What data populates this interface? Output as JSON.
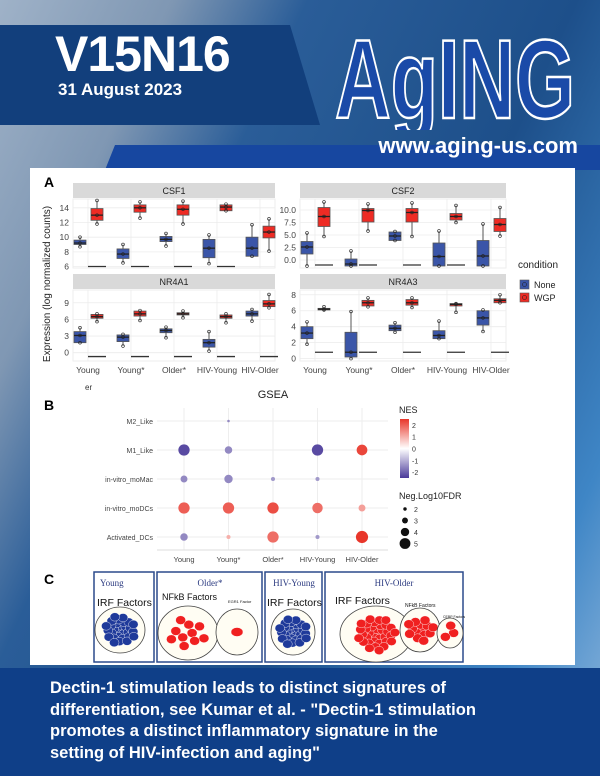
{
  "cover": {
    "volume_issue": "V15N16",
    "date": "31 August 2023",
    "journal_logo": "AGING",
    "url": "www.aging-us.com",
    "colors": {
      "band": "#123f7c",
      "logo_blue": "#1a4aa8",
      "banner": "#0f3f88"
    },
    "caption_lines": [
      "Dectin-1 stimulation leads to distinct signatures of",
      "differentiation, see Kumar et al. - \"Dectin-1 stimulation",
      "promotes a distinct inflammatory signature in the",
      "setting of HIV-infection and aging\""
    ]
  },
  "figure": {
    "panel_labels": [
      "A",
      "B",
      "C"
    ],
    "panel_c": {
      "panels": [
        {
          "title": "Young",
          "clusters": [
            {
              "label": "IRF Factors",
              "color": "#1f3a9a",
              "count": 30
            }
          ]
        },
        {
          "title": "Older*",
          "clusters": [
            {
              "label": "NFkB Factors",
              "color": "#f02020",
              "count": 10
            },
            {
              "label": "EGR1 Factor",
              "color": "#f02020",
              "count": 1
            }
          ]
        },
        {
          "title": "HIV-Young",
          "clusters": [
            {
              "label": "IRF Factors",
              "color": "#1f3a9a",
              "count": 30
            }
          ]
        },
        {
          "title": "HIV-Older",
          "clusters": [
            {
              "label": "IRF Factors",
              "color": "#f02020",
              "count": 35
            },
            {
              "label": "NFkB Factors",
              "color": "#f02020",
              "count": 14
            },
            {
              "label": "CEBP Factors",
              "color": "#f02020",
              "count": 3
            }
          ]
        }
      ]
    }
  },
  "chart_data": [
    {
      "type": "boxplot",
      "panel": "A",
      "ylabel": "Expression (log normalized counts)",
      "categories": [
        "Young",
        "Young*",
        "Older*",
        "HIV-Young",
        "HIV-Older"
      ],
      "legend": {
        "title": "condition",
        "placement": "right",
        "entries": [
          {
            "name": "None",
            "color": "#3a55a8"
          },
          {
            "name": "WGP",
            "color": "#ee2b24"
          }
        ]
      },
      "grid": true,
      "facets": [
        {
          "title": "CSF1",
          "ylim": [
            5.8,
            15.2
          ],
          "ticks": [
            6,
            8,
            10,
            12,
            14
          ],
          "None": [
            [
              8.7,
              9.0,
              9.2,
              9.6,
              10.0
            ],
            [
              6.5,
              7.1,
              7.7,
              8.4,
              9.0
            ],
            [
              8.8,
              9.4,
              9.7,
              10.1,
              10.5
            ],
            [
              6.4,
              7.2,
              8.5,
              9.7,
              10.3
            ],
            [
              7.4,
              7.4,
              8.5,
              10.0,
              11.7
            ]
          ],
          "WGP": [
            [
              11.8,
              12.3,
              13.0,
              13.9,
              15.0
            ],
            [
              12.6,
              13.4,
              14.0,
              14.4,
              14.8
            ],
            [
              11.8,
              13.0,
              13.8,
              14.4,
              14.9
            ],
            [
              13.6,
              13.6,
              14.1,
              14.4,
              14.5
            ],
            [
              8.1,
              9.9,
              10.7,
              11.5,
              12.5
            ]
          ],
          "baseline": [
            6,
            6,
            6,
            6,
            null
          ]
        },
        {
          "title": "CSF2",
          "ylim": [
            -1.6,
            12.2
          ],
          "ticks": [
            0.0,
            2.5,
            5.0,
            7.5,
            10.0
          ],
          "tick_labels": [
            "0.0",
            "2.5",
            "5.0",
            "7.5",
            "10.0"
          ],
          "None": [
            [
              -1.2,
              1.2,
              2.6,
              3.7,
              5.4
            ],
            [
              -1.2,
              -1.2,
              -0.8,
              0.2,
              1.8
            ],
            [
              3.9,
              3.9,
              4.8,
              5.6,
              5.7
            ],
            [
              -1.2,
              -1.2,
              0.7,
              3.4,
              5.8
            ],
            [
              -1.2,
              -1.2,
              0.8,
              3.9,
              7.2
            ]
          ],
          "WGP": [
            [
              4.7,
              6.7,
              8.7,
              10.5,
              11.6
            ],
            [
              5.8,
              7.6,
              9.9,
              10.3,
              11.2
            ],
            [
              4.7,
              7.6,
              9.5,
              10.3,
              11.4
            ],
            [
              7.5,
              8.0,
              8.7,
              9.3,
              10.9
            ],
            [
              4.8,
              5.7,
              7.1,
              8.3,
              10.5
            ]
          ],
          "baseline": [
            -1,
            -1,
            -1,
            -1,
            null
          ]
        },
        {
          "title": "NR4A1",
          "ylim": [
            -1.5,
            11.3
          ],
          "ticks": [
            0,
            3,
            6,
            9
          ],
          "None": [
            [
              1.8,
              1.8,
              3.1,
              3.8,
              4.5
            ],
            [
              1.2,
              2.0,
              2.8,
              3.2,
              3.3
            ],
            [
              2.7,
              3.6,
              4.0,
              4.3,
              4.6
            ],
            [
              0.3,
              1.0,
              1.8,
              2.4,
              3.8
            ],
            [
              5.7,
              6.6,
              7.0,
              7.5,
              7.8
            ]
          ],
          "WGP": [
            [
              5.6,
              6.2,
              6.5,
              6.9,
              7.0
            ],
            [
              5.8,
              6.6,
              7.0,
              7.5,
              7.6
            ],
            [
              6.3,
              6.8,
              7.0,
              7.2,
              7.5
            ],
            [
              5.4,
              6.2,
              6.5,
              6.8,
              7.0
            ],
            [
              8.1,
              8.3,
              8.8,
              9.4,
              10.5
            ]
          ],
          "baseline": [
            -0.7,
            -0.7,
            -0.7,
            -0.7,
            -0.7
          ]
        },
        {
          "title": "NR4A3",
          "ylim": [
            -0.3,
            8.6
          ],
          "ticks": [
            0,
            2,
            4,
            6,
            8
          ],
          "None": [
            [
              1.8,
              2.5,
              3.2,
              4.0,
              4.6
            ],
            [
              0.0,
              0.2,
              0.8,
              3.3,
              5.9
            ],
            [
              3.3,
              3.5,
              3.8,
              4.2,
              4.5
            ],
            [
              2.5,
              2.5,
              2.9,
              3.5,
              4.7
            ],
            [
              3.4,
              4.2,
              5.1,
              6.0,
              6.1
            ]
          ],
          "WGP": [
            [
              6.1,
              6.1,
              6.2,
              6.3,
              6.5
            ],
            [
              6.5,
              6.6,
              7.0,
              7.3,
              7.6
            ],
            [
              6.4,
              6.7,
              7.0,
              7.4,
              7.6
            ],
            [
              5.8,
              6.6,
              6.8,
              6.9,
              6.9
            ],
            [
              7.0,
              7.0,
              7.3,
              7.5,
              8.0
            ]
          ],
          "baseline": [
            0.8,
            0.8,
            0.8,
            0.8,
            0.8
          ]
        }
      ]
    },
    {
      "type": "scatter",
      "panel": "B",
      "title": "GSEA",
      "corner_text": "er",
      "x_categories": [
        "Young",
        "Young*",
        "Older*",
        "HIV-Young",
        "HIV-Older"
      ],
      "y_categories": [
        "M2_Like",
        "M1_Like",
        "in-vitro_moMac",
        "in-vitro_moDCs",
        "Activated_DCs"
      ],
      "color_legend": {
        "title": "NES",
        "range": [
          -2.5,
          2.5
        ],
        "ticks": [
          2,
          1,
          0,
          -1,
          -2
        ],
        "low": "#4b3a9a",
        "mid": "#ffffff",
        "high": "#e8362a"
      },
      "size_legend": {
        "title": "Neg.Log10FDR",
        "values": [
          2,
          3,
          4,
          5
        ]
      },
      "grid": true,
      "points": [
        {
          "x": "Young*",
          "y": "M2_Like",
          "NES": -1.5,
          "FDR": 1.5
        },
        {
          "x": "Young",
          "y": "M1_Like",
          "NES": -2.3,
          "FDR": 4.5
        },
        {
          "x": "Young*",
          "y": "M1_Like",
          "NES": -1.5,
          "FDR": 3.2
        },
        {
          "x": "HIV-Young",
          "y": "M1_Like",
          "NES": -2.3,
          "FDR": 4.5
        },
        {
          "x": "HIV-Older",
          "y": "M1_Like",
          "NES": 2.3,
          "FDR": 4.3
        },
        {
          "x": "Young",
          "y": "in-vitro_moMac",
          "NES": -1.5,
          "FDR": 3.0
        },
        {
          "x": "Young*",
          "y": "in-vitro_moMac",
          "NES": -1.5,
          "FDR": 3.5
        },
        {
          "x": "Older*",
          "y": "in-vitro_moMac",
          "NES": -1.3,
          "FDR": 2.0
        },
        {
          "x": "HIV-Young",
          "y": "in-vitro_moMac",
          "NES": -1.3,
          "FDR": 2.0
        },
        {
          "x": "Young",
          "y": "in-vitro_moDCs",
          "NES": 2.0,
          "FDR": 4.5
        },
        {
          "x": "Young*",
          "y": "in-vitro_moDCs",
          "NES": 2.0,
          "FDR": 4.5
        },
        {
          "x": "Older*",
          "y": "in-vitro_moDCs",
          "NES": 2.2,
          "FDR": 4.5
        },
        {
          "x": "HIV-Young",
          "y": "in-vitro_moDCs",
          "NES": 1.8,
          "FDR": 4.2
        },
        {
          "x": "HIV-Older",
          "y": "in-vitro_moDCs",
          "NES": 1.2,
          "FDR": 3.0
        },
        {
          "x": "Young",
          "y": "Activated_DCs",
          "NES": -1.5,
          "FDR": 3.2
        },
        {
          "x": "Young*",
          "y": "Activated_DCs",
          "NES": 1.0,
          "FDR": 2.0
        },
        {
          "x": "Older*",
          "y": "Activated_DCs",
          "NES": 1.8,
          "FDR": 4.5
        },
        {
          "x": "HIV-Young",
          "y": "Activated_DCs",
          "NES": -1.3,
          "FDR": 2.0
        },
        {
          "x": "HIV-Older",
          "y": "Activated_DCs",
          "NES": 2.7,
          "FDR": 4.8
        }
      ]
    }
  ]
}
